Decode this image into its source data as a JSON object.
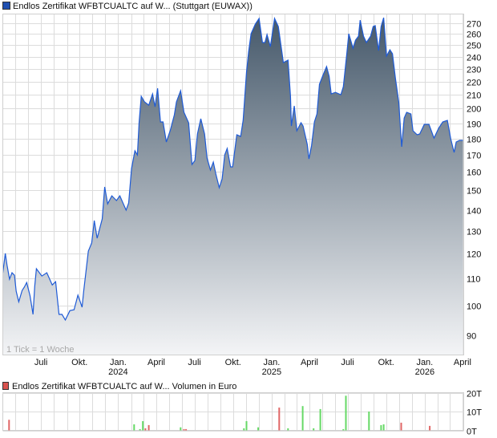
{
  "chart_data": [
    {
      "type": "area",
      "title": "Endlos Zertifikat WFBTCUALTC auf W... (Stuttgart (EUWAX))",
      "legend_color": "#1f4fb0",
      "line_color": "#1f5bd6",
      "fill_top_color": "#45586a",
      "fill_bottom_color": "#f3f4f6",
      "note": "1 Tick = 1 Woche",
      "y_scale": "log",
      "ylim": [
        84,
        279
      ],
      "xlim": [
        "2023-04-01",
        "2026-04-04"
      ],
      "grid": true,
      "y_ticks": [
        90,
        100,
        110,
        120,
        130,
        140,
        150,
        160,
        170,
        180,
        190,
        200,
        210,
        220,
        230,
        240,
        250,
        260,
        270
      ],
      "x_ticks": [
        {
          "date": "2023-07-01",
          "label": "Juli",
          "year": ""
        },
        {
          "date": "2023-10-01",
          "label": "Okt.",
          "year": ""
        },
        {
          "date": "2024-01-01",
          "label": "Jan.",
          "year": "2024"
        },
        {
          "date": "2024-04-01",
          "label": "April",
          "year": ""
        },
        {
          "date": "2024-07-01",
          "label": "Juli",
          "year": ""
        },
        {
          "date": "2024-10-01",
          "label": "Okt.",
          "year": ""
        },
        {
          "date": "2025-01-01",
          "label": "Jan.",
          "year": "2025"
        },
        {
          "date": "2025-04-01",
          "label": "April",
          "year": ""
        },
        {
          "date": "2025-07-01",
          "label": "Juli",
          "year": ""
        },
        {
          "date": "2025-10-01",
          "label": "Okt.",
          "year": ""
        },
        {
          "date": "2026-01-01",
          "label": "Jan.",
          "year": "2026"
        },
        {
          "date": "2026-04-01",
          "label": "April",
          "year": ""
        }
      ],
      "x": [
        "2023-04-01",
        "2023-04-07",
        "2023-04-11",
        "2023-04-17",
        "2023-04-23",
        "2023-04-29",
        "2023-05-03",
        "2023-05-09",
        "2023-05-17",
        "2023-05-22",
        "2023-05-28",
        "2023-06-05",
        "2023-06-12",
        "2023-06-16",
        "2023-06-20",
        "2023-07-03",
        "2023-07-15",
        "2023-07-28",
        "2023-08-05",
        "2023-08-13",
        "2023-08-20",
        "2023-08-28",
        "2023-09-08",
        "2023-09-18",
        "2023-09-27",
        "2023-10-07",
        "2023-10-11",
        "2023-10-22",
        "2023-10-30",
        "2023-11-05",
        "2023-11-12",
        "2023-11-24",
        "2023-11-30",
        "2023-12-07",
        "2023-12-17",
        "2023-12-28",
        "2024-01-05",
        "2024-01-20",
        "2024-01-26",
        "2024-02-02",
        "2024-02-10",
        "2024-02-16",
        "2024-02-20",
        "2024-02-25",
        "2024-03-04",
        "2024-03-14",
        "2024-03-23",
        "2024-03-29",
        "2024-04-04",
        "2024-04-11",
        "2024-04-17",
        "2024-04-25",
        "2024-05-04",
        "2024-05-14",
        "2024-05-19",
        "2024-05-29",
        "2024-06-06",
        "2024-06-17",
        "2024-06-25",
        "2024-07-02",
        "2024-07-08",
        "2024-07-16",
        "2024-07-25",
        "2024-07-31",
        "2024-08-08",
        "2024-08-15",
        "2024-08-21",
        "2024-08-29",
        "2024-09-05",
        "2024-09-11",
        "2024-09-17",
        "2024-09-25",
        "2024-09-30",
        "2024-10-10",
        "2024-10-19",
        "2024-10-25",
        "2024-11-02",
        "2024-11-07",
        "2024-11-13",
        "2024-11-23",
        "2024-12-02",
        "2024-12-10",
        "2024-12-16",
        "2024-12-21",
        "2024-12-29",
        "2025-01-08",
        "2025-01-17",
        "2025-01-29",
        "2025-02-09",
        "2025-02-15",
        "2025-02-17",
        "2025-02-24",
        "2025-03-02",
        "2025-03-12",
        "2025-03-17",
        "2025-03-27",
        "2025-03-31",
        "2025-04-06",
        "2025-04-13",
        "2025-04-19",
        "2025-04-25",
        "2025-05-04",
        "2025-05-12",
        "2025-05-18",
        "2025-05-23",
        "2025-06-02",
        "2025-06-15",
        "2025-06-21",
        "2025-06-29",
        "2025-07-04",
        "2025-07-14",
        "2025-07-20",
        "2025-07-27",
        "2025-07-31",
        "2025-08-08",
        "2025-08-15",
        "2025-08-25",
        "2025-08-31",
        "2025-09-05",
        "2025-09-13",
        "2025-09-19",
        "2025-09-25",
        "2025-10-02",
        "2025-10-10",
        "2025-10-16",
        "2025-10-23",
        "2025-10-31",
        "2025-11-07",
        "2025-11-13",
        "2025-11-19",
        "2025-11-29",
        "2025-12-04",
        "2025-12-14",
        "2025-12-20",
        "2025-12-31",
        "2026-01-11",
        "2026-01-23",
        "2026-02-03",
        "2026-02-13",
        "2026-02-24",
        "2026-03-04",
        "2026-03-12",
        "2026-03-17",
        "2026-03-25",
        "2026-04-02"
      ],
      "values": [
        112.2,
        120.1,
        115.4,
        109.7,
        112.2,
        111.2,
        105.1,
        101.3,
        105.4,
        106.6,
        108.4,
        103.4,
        96.9,
        106.9,
        113.8,
        110.9,
        112.2,
        107.5,
        108.7,
        96.9,
        96.9,
        95.0,
        98.2,
        98.5,
        103.7,
        99.4,
        105.4,
        121.1,
        124.6,
        134.8,
        126.7,
        135.6,
        151.8,
        143.0,
        147.1,
        144.7,
        147.1,
        139.9,
        143.4,
        162.0,
        172.4,
        169.9,
        190.3,
        208.8,
        204.8,
        202.4,
        210.6,
        201.3,
        214.8,
        190.8,
        190.8,
        177.8,
        185.0,
        195.7,
        204.8,
        213.0,
        197.4,
        190.3,
        164.3,
        166.6,
        182.9,
        193.0,
        182.9,
        168.0,
        161.1,
        165.7,
        158.8,
        151.4,
        156.1,
        169.9,
        173.8,
        162.9,
        162.9,
        182.4,
        181.3,
        191.9,
        227.3,
        244.0,
        260.3,
        269.3,
        274.7,
        252.4,
        252.4,
        259.6,
        248.8,
        274.7,
        267.0,
        235.2,
        237.2,
        208.8,
        188.1,
        201.9,
        185.0,
        190.3,
        188.1,
        176.3,
        167.5,
        175.3,
        190.8,
        196.3,
        217.9,
        225.4,
        231.9,
        224.1,
        210.6,
        211.8,
        210.0,
        216.0,
        241.9,
        260.3,
        247.4,
        254.5,
        258.1,
        273.1,
        258.1,
        252.4,
        258.1,
        267.0,
        267.8,
        245.3,
        267.0,
        275.5,
        240.6,
        246.0,
        242.6,
        222.9,
        204.8,
        174.8,
        193.5,
        197.4,
        196.3,
        185.0,
        182.4,
        182.9,
        189.2,
        189.2,
        180.3,
        186.5,
        190.8,
        191.9,
        179.8,
        171.4,
        177.8,
        178.8,
        178.8
      ]
    },
    {
      "type": "bar",
      "title": "Endlos Zertifikat WFBTCUALTC auf W... Volumen in Euro",
      "legend_color": "#d9534f",
      "up_color": "#66d966",
      "down_color": "#e06666",
      "ylim": [
        0,
        20
      ],
      "unit": "T",
      "y_ticks": [
        {
          "value": 20,
          "label": "20T"
        },
        {
          "value": 10,
          "label": "10T"
        },
        {
          "value": 0,
          "label": "0T"
        }
      ],
      "bars": [
        {
          "date": "2023-04-16",
          "value": 5.6,
          "dir": "down"
        },
        {
          "date": "2024-02-08",
          "value": 3.2,
          "dir": "up"
        },
        {
          "date": "2024-02-22",
          "value": 0.7,
          "dir": "up"
        },
        {
          "date": "2024-02-29",
          "value": 4.9,
          "dir": "up"
        },
        {
          "date": "2024-03-06",
          "value": 1.1,
          "dir": "down"
        },
        {
          "date": "2024-03-14",
          "value": 2.8,
          "dir": "down"
        },
        {
          "date": "2024-05-29",
          "value": 1.6,
          "dir": "up"
        },
        {
          "date": "2024-06-06",
          "value": 0.7,
          "dir": "down"
        },
        {
          "date": "2024-06-11",
          "value": 0.7,
          "dir": "down"
        },
        {
          "date": "2024-10-27",
          "value": 1.1,
          "dir": "up"
        },
        {
          "date": "2024-11-02",
          "value": 4.9,
          "dir": "up"
        },
        {
          "date": "2024-11-30",
          "value": 1.6,
          "dir": "up"
        },
        {
          "date": "2025-01-19",
          "value": 12.1,
          "dir": "down"
        },
        {
          "date": "2025-02-09",
          "value": 1.1,
          "dir": "up"
        },
        {
          "date": "2025-03-16",
          "value": 12.9,
          "dir": "up"
        },
        {
          "date": "2025-04-11",
          "value": 1.1,
          "dir": "up"
        },
        {
          "date": "2025-04-27",
          "value": 11.3,
          "dir": "up"
        },
        {
          "date": "2025-06-21",
          "value": 0.7,
          "dir": "up"
        },
        {
          "date": "2025-06-27",
          "value": 18.4,
          "dir": "up"
        },
        {
          "date": "2025-08-21",
          "value": 10.0,
          "dir": "up"
        },
        {
          "date": "2025-09-19",
          "value": 2.8,
          "dir": "up"
        },
        {
          "date": "2025-09-25",
          "value": 3.2,
          "dir": "up"
        },
        {
          "date": "2025-11-06",
          "value": 4.1,
          "dir": "down"
        },
        {
          "date": "2026-01-13",
          "value": 2.4,
          "dir": "down"
        }
      ]
    }
  ]
}
